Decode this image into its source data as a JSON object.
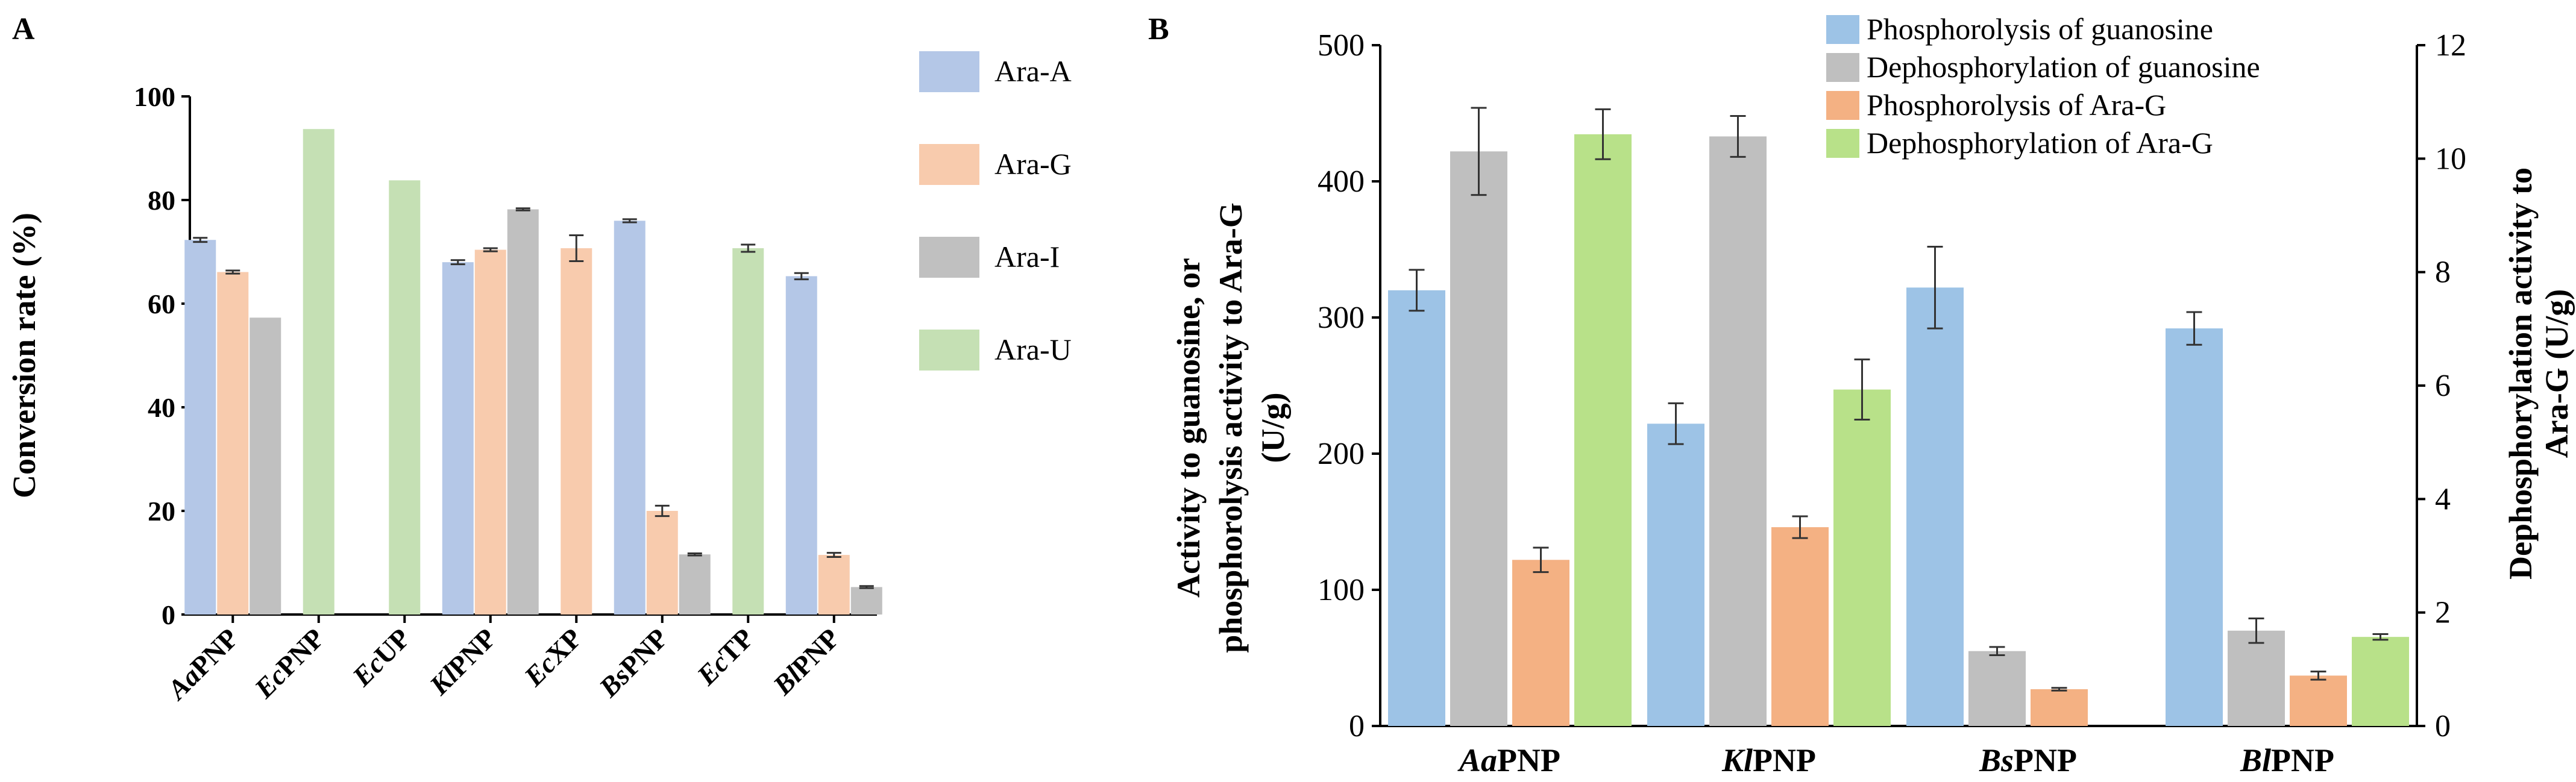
{
  "chart_data": [
    {
      "panel": "A",
      "type": "bar",
      "title": "",
      "xlabel": "",
      "ylabel": "Conversion rate (%)",
      "ylim": [
        0,
        100
      ],
      "yticks": [
        0,
        20,
        40,
        60,
        80,
        100
      ],
      "categories": [
        {
          "italic": "Aa",
          "rest": "PNP"
        },
        {
          "italic": "Ec",
          "rest": "PNP"
        },
        {
          "italic": "Ec",
          "rest": "UP"
        },
        {
          "italic": "Kl",
          "rest": "PNP"
        },
        {
          "italic": "Ec",
          "rest": "XP"
        },
        {
          "italic": "Bs",
          "rest": "PNP"
        },
        {
          "italic": "Ec",
          "rest": "TP"
        },
        {
          "italic": "Bl",
          "rest": "PNP"
        }
      ],
      "legend_position": "top-right",
      "series": [
        {
          "name": "Ara-A",
          "color": "#b4c7e7",
          "values": [
            72.3,
            null,
            null,
            68.0,
            null,
            76.0,
            null,
            65.3
          ],
          "errors": [
            0.4,
            null,
            null,
            0.4,
            null,
            0.3,
            null,
            0.6
          ]
        },
        {
          "name": "Ara-G",
          "color": "#f8cbad",
          "values": [
            66.1,
            null,
            null,
            70.4,
            70.7,
            20.0,
            null,
            11.5
          ],
          "errors": [
            0.3,
            null,
            null,
            0.3,
            2.5,
            1.0,
            null,
            0.4
          ]
        },
        {
          "name": "Ara-I",
          "color": "#c0c0c0",
          "values": [
            57.3,
            null,
            null,
            78.2,
            null,
            11.6,
            null,
            5.3
          ],
          "errors": [
            null,
            null,
            null,
            0.2,
            null,
            0.2,
            null,
            0.2
          ]
        },
        {
          "name": "Ara-U",
          "color": "#c5e0b4",
          "values": [
            null,
            93.7,
            83.8,
            null,
            null,
            null,
            70.7,
            null
          ],
          "errors": [
            null,
            null,
            null,
            null,
            null,
            null,
            0.7,
            null
          ]
        }
      ]
    },
    {
      "panel": "B",
      "type": "bar",
      "title": "",
      "xlabel": "",
      "ylabel_left": [
        "Activity to guanosine, or",
        "phosphorolysis activity to Ara-G",
        "(U/g)"
      ],
      "ylabel_right": [
        "Dephosphorylation activity to",
        "Ara-G (U/g)"
      ],
      "ylim_left": [
        0,
        500
      ],
      "yticks_left": [
        0,
        100,
        200,
        300,
        400,
        500
      ],
      "ylim_right": [
        0,
        12
      ],
      "yticks_right": [
        0,
        2,
        4,
        6,
        8,
        10,
        12
      ],
      "categories": [
        {
          "italic": "Aa",
          "rest": "PNP"
        },
        {
          "italic": "Kl",
          "rest": "PNP"
        },
        {
          "italic": "Bs",
          "rest": "PNP"
        },
        {
          "italic": "Bl",
          "rest": "PNP"
        }
      ],
      "legend_position": "top-right",
      "series": [
        {
          "name": "Phosphorolysis of guanosine",
          "color": "#9dc3e6",
          "axis": "left",
          "values": [
            320,
            222,
            322,
            292
          ],
          "errors": [
            15,
            15,
            30,
            12
          ]
        },
        {
          "name": "Dephosphorylation of guanosine",
          "color": "#bfbfbf",
          "axis": "left",
          "values": [
            422,
            433,
            55,
            70
          ],
          "errors": [
            32,
            15,
            3,
            9
          ]
        },
        {
          "name": "Phosphorolysis of Ara-G",
          "color": "#f4b183",
          "axis": "left",
          "values": [
            122,
            146,
            27,
            37
          ],
          "errors": [
            9,
            8,
            1,
            3
          ]
        },
        {
          "name": "Dephosphorylation of Ara-G",
          "color": "#b8e189",
          "axis": "right",
          "values": [
            10.43,
            5.93,
            null,
            1.57
          ],
          "errors": [
            0.44,
            0.53,
            null,
            0.05
          ]
        }
      ]
    }
  ],
  "panel_labels": {
    "a": "A",
    "b": "B"
  }
}
